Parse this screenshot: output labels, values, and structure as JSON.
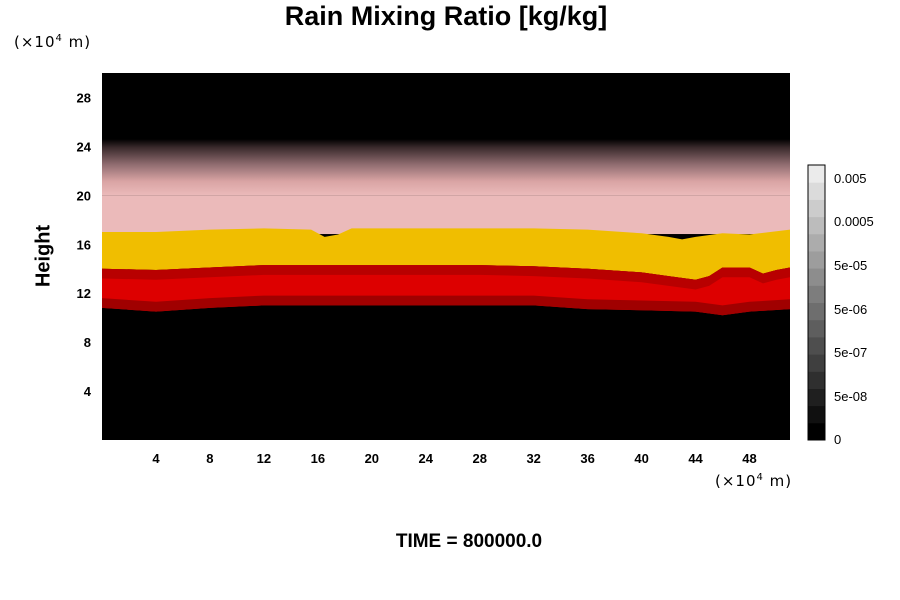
{
  "chart_data": {
    "type": "heatmap",
    "title": "Rain Mixing Ratio [kg/kg]",
    "ylabel": "Height",
    "xunit": {
      "prefix": "(×10",
      "exp": "4",
      "suffix": " m)"
    },
    "yunit": {
      "prefix": "(×10",
      "exp": "4",
      "suffix": " m)"
    },
    "xlim": [
      0,
      51
    ],
    "ylim": [
      0,
      30
    ],
    "xticks": [
      4,
      8,
      12,
      16,
      20,
      24,
      28,
      32,
      36,
      40,
      44,
      48
    ],
    "yticks": [
      4,
      8,
      12,
      16,
      20,
      24,
      28
    ],
    "bands": [
      {
        "name": "red band",
        "color": "#dd0000",
        "bottom": [
          [
            0,
            10.8
          ],
          [
            4,
            10.5
          ],
          [
            8,
            10.8
          ],
          [
            12,
            11.0
          ],
          [
            20,
            11.0
          ],
          [
            28,
            11.0
          ],
          [
            32,
            11.0
          ],
          [
            36,
            10.7
          ],
          [
            40,
            10.6
          ],
          [
            44,
            10.5
          ],
          [
            46,
            10.2
          ],
          [
            48,
            10.5
          ],
          [
            51,
            10.7
          ]
        ],
        "top": [
          [
            0,
            14.0
          ],
          [
            4,
            13.9
          ],
          [
            8,
            14.1
          ],
          [
            12,
            14.3
          ],
          [
            20,
            14.3
          ],
          [
            28,
            14.3
          ],
          [
            32,
            14.2
          ],
          [
            36,
            14.0
          ],
          [
            40,
            13.7
          ],
          [
            42,
            13.4
          ],
          [
            44,
            13.1
          ],
          [
            45,
            13.4
          ],
          [
            46,
            14.1
          ],
          [
            48,
            14.1
          ],
          [
            49,
            13.6
          ],
          [
            50,
            13.9
          ],
          [
            51,
            14.1
          ]
        ]
      },
      {
        "name": "yellow band",
        "color": "#f0be00",
        "top": [
          [
            0,
            17.0
          ],
          [
            4,
            17.0
          ],
          [
            8,
            17.2
          ],
          [
            12,
            17.3
          ],
          [
            15.5,
            17.2
          ],
          [
            16.5,
            16.6
          ],
          [
            17.5,
            16.8
          ],
          [
            18.5,
            17.3
          ],
          [
            24,
            17.3
          ],
          [
            32,
            17.3
          ],
          [
            36,
            17.2
          ],
          [
            40,
            16.9
          ],
          [
            42,
            16.6
          ],
          [
            43,
            16.4
          ],
          [
            44,
            16.6
          ],
          [
            46,
            16.9
          ],
          [
            48,
            16.8
          ],
          [
            51,
            17.2
          ]
        ]
      }
    ],
    "upper_layer": {
      "bottom": 17.0,
      "pink_top": 20.0,
      "fade_top": 24.6,
      "color": "#ebbaba"
    },
    "colorbar": {
      "labels": [
        "0.005",
        "0.0005",
        "5e-05",
        "5e-06",
        "5e-07",
        "5e-08",
        "0"
      ],
      "levels": 16
    }
  },
  "footer": {
    "time_label": "TIME = 800000.0"
  }
}
